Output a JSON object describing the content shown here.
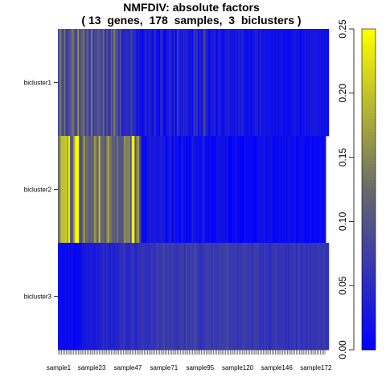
{
  "chart_data": {
    "type": "heatmap",
    "title": "NMFDIV: absolute factors",
    "subtitle": "( 13  genes,  178  samples,  3  biclusters )",
    "rows": [
      "bicluster1",
      "bicluster2",
      "bicluster3"
    ],
    "n_samples": 178,
    "x_tick_labels": [
      "sample1",
      "sample23",
      "sample47",
      "sample71",
      "sample95",
      "sample120",
      "sample146",
      "sample172"
    ],
    "x_tick_positions": [
      1,
      23,
      47,
      71,
      95,
      120,
      146,
      172
    ],
    "value_range": [
      0,
      0.25
    ],
    "colorbar": {
      "ticks": [
        0.0,
        0.05,
        0.1,
        0.15,
        0.2,
        0.25
      ],
      "tick_labels": [
        "0.00",
        "0.05",
        "0.10",
        "0.15",
        "0.20",
        "0.25"
      ],
      "colors": [
        "#0000ff",
        "#696969",
        "#ffff00"
      ]
    },
    "values": [
      [
        0.079,
        0.144,
        0.096,
        0.071,
        0.136,
        0.067,
        0.068,
        0.098,
        0.088,
        0.138,
        0.124,
        0.084,
        0.081,
        0.163,
        0.075,
        0.108,
        0.118,
        0.126,
        0.07,
        0.117,
        0.086,
        0.066,
        0.146,
        0.062,
        0.091,
        0.079,
        0.106,
        0.099,
        0.087,
        0.083,
        0.13,
        0.041,
        0.094,
        0.076,
        0.051,
        0.117,
        0.086,
        0.143,
        0.094,
        0.098,
        0.054,
        0.1,
        0.04,
        0.041,
        0.05,
        0.05,
        0.052,
        0.038,
        0.074,
        0.067,
        0.043,
        0.05,
        0.018,
        0.037,
        0.019,
        0.014,
        0.011,
        0.026,
        0.051,
        0.019,
        0.034,
        0.036,
        0.022,
        0.01,
        0.068,
        0.012,
        0.019,
        0.004,
        0.052,
        0.037,
        0.007,
        0.005,
        0.035,
        0.028,
        0.058,
        0.031,
        0.014,
        0.05,
        0.002,
        0.076,
        0.04,
        0.029,
        0.027,
        0.045,
        0.033,
        0.042,
        0.03,
        0.018,
        0.028,
        0.007,
        0.069,
        0.041,
        0.057,
        0.013,
        0.049,
        0.01,
        0.058,
        0.082,
        0.046,
        0.029,
        0.009,
        0.026,
        0.029,
        0.035,
        0.04,
        0.0,
        0.034,
        0.041,
        0.024,
        0.013,
        0.017,
        0.032,
        0.036,
        0.041,
        0.024,
        0.021,
        0.026,
        0.015,
        0.038,
        0.02,
        0.045,
        0.019,
        0.044,
        0.024,
        0.019,
        0.012,
        0.016,
        0.028,
        0.006,
        0.027,
        0.024,
        0.044,
        0.033,
        0.016,
        0.042,
        0.018,
        0.02,
        0.03,
        0.021,
        0.024,
        0.019,
        0.021,
        0.013,
        0.026,
        0.011,
        0.029,
        0.012,
        0.025,
        0.019,
        0.023,
        0.01,
        0.023,
        0.012,
        0.013,
        0.012,
        0.022,
        0.029,
        0.028,
        0.022,
        0.02,
        0.015,
        0.006,
        0.021,
        0.016,
        0.034,
        0.016,
        0.026,
        0.027,
        0.023,
        0.028,
        0.031,
        0.024,
        0.031,
        0.015,
        0.028,
        0.014,
        0.025,
        0.021,
        0.017,
        0.016
      ],
      [
        0.121,
        0.158,
        0.2,
        0.196,
        0.2,
        0.21,
        0.168,
        0.244,
        0.109,
        0.095,
        0.158,
        0.221,
        0.25,
        0.245,
        0.092,
        0.092,
        0.125,
        0.172,
        0.114,
        0.129,
        0.106,
        0.108,
        0.117,
        0.111,
        0.166,
        0.144,
        0.104,
        0.198,
        0.134,
        0.113,
        0.125,
        0.098,
        0.141,
        0.179,
        0.136,
        0.132,
        0.103,
        0.114,
        0.095,
        0.137,
        0.096,
        0.1,
        0.095,
        0.109,
        0.169,
        0.136,
        0.148,
        0.153,
        0.087,
        0.236,
        0.236,
        0.094,
        0.147,
        0.17,
        0.092,
        0.034,
        0.005,
        0.013,
        0.007,
        0.026,
        0.025,
        0.039,
        0.024,
        0.033,
        0.03,
        0.029,
        0.02,
        0.028,
        0.038,
        0.029,
        0.029,
        0.015,
        0.004,
        0.019,
        0.038,
        0.017,
        0.008,
        0.032,
        0.013,
        0.019,
        0.008,
        0.004,
        0.035,
        0.014,
        0.017,
        0.004,
        0.015,
        0.003,
        0.017,
        0.037,
        0.021,
        0.022,
        0.014,
        0.022,
        0.004,
        0.019,
        0.036,
        0.026,
        0.006,
        0.014,
        0.01,
        0.014,
        0.003,
        0.01,
        0.005,
        0.021,
        0.024,
        0.015,
        0.023,
        0.016,
        0.021,
        0.015,
        0.024,
        0.005,
        0.002,
        0.005,
        0.012,
        0.01,
        0.021,
        0.011,
        0.007,
        0.004,
        0.001,
        0.004,
        0.021,
        0.01,
        0.012,
        0.008,
        0.009,
        0.006,
        0.002,
        0.001,
        0.016,
        0.017,
        0.022,
        0.018,
        0.019,
        0.022,
        0.009,
        0.018,
        0.016,
        0.022,
        0.014,
        0.006,
        0.009,
        0.008,
        0.01,
        0.021,
        0.007,
        0.02,
        0.012,
        0.016,
        0.013,
        0.021,
        0.018,
        0.008,
        0.015,
        0.021,
        0.003,
        0.007,
        0.015,
        0.014,
        0.02,
        0.017,
        0.002,
        0.01,
        0.005,
        0.013,
        0.014,
        0.004,
        0.011,
        0.011,
        0.006,
        0.009,
        0.016,
        0.016,
        0.003,
        0.019
      ],
      [
        0.02,
        0.013,
        0.016,
        0.009,
        0.012,
        0.017,
        0.01,
        0.018,
        0.012,
        0.019,
        0.005,
        0.007,
        0.006,
        0.012,
        0.012,
        0.011,
        0.033,
        0.018,
        0.033,
        0.031,
        0.03,
        0.035,
        0.028,
        0.031,
        0.026,
        0.035,
        0.034,
        0.033,
        0.043,
        0.039,
        0.053,
        0.038,
        0.054,
        0.041,
        0.031,
        0.045,
        0.042,
        0.034,
        0.045,
        0.042,
        0.045,
        0.057,
        0.05,
        0.062,
        0.058,
        0.045,
        0.047,
        0.04,
        0.056,
        0.062,
        0.054,
        0.044,
        0.043,
        0.059,
        0.055,
        0.06,
        0.064,
        0.058,
        0.055,
        0.059,
        0.051,
        0.06,
        0.062,
        0.059,
        0.056,
        0.071,
        0.071,
        0.064,
        0.065,
        0.073,
        0.084,
        0.059,
        0.069,
        0.072,
        0.058,
        0.074,
        0.072,
        0.063,
        0.061,
        0.058,
        0.067,
        0.072,
        0.073,
        0.068,
        0.056,
        0.086,
        0.06,
        0.069,
        0.076,
        0.066,
        0.076,
        0.083,
        0.069,
        0.066,
        0.052,
        0.053,
        0.069,
        0.062,
        0.074,
        0.074,
        0.072,
        0.077,
        0.055,
        0.08,
        0.065,
        0.066,
        0.067,
        0.075,
        0.069,
        0.073,
        0.074,
        0.074,
        0.082,
        0.079,
        0.063,
        0.073,
        0.065,
        0.066,
        0.07,
        0.06,
        0.067,
        0.064,
        0.073,
        0.074,
        0.075,
        0.07,
        0.062,
        0.072,
        0.063,
        0.059,
        0.074,
        0.071,
        0.073,
        0.072,
        0.051,
        0.065,
        0.052,
        0.069,
        0.055,
        0.065,
        0.051,
        0.051,
        0.065,
        0.058,
        0.073,
        0.068,
        0.06,
        0.059,
        0.064,
        0.064,
        0.063,
        0.051,
        0.063,
        0.049,
        0.067,
        0.056,
        0.068,
        0.071,
        0.05,
        0.068,
        0.072,
        0.06,
        0.056,
        0.065,
        0.062,
        0.051,
        0.07,
        0.055,
        0.061,
        0.066,
        0.062,
        0.058,
        0.069,
        0.068,
        0.067,
        0.061,
        0.07,
        0.068,
        0.058,
        0.059
      ]
    ]
  }
}
